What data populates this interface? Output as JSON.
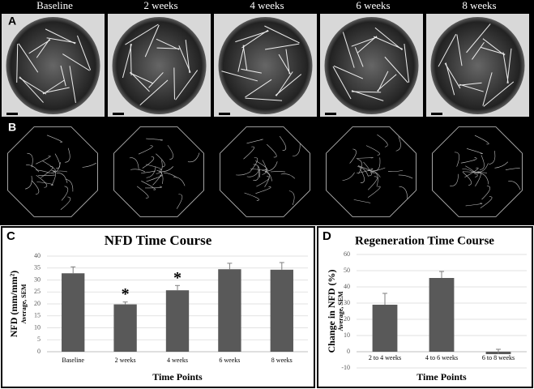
{
  "column_labels": [
    "Baseline",
    "2 weeks",
    "4 weeks",
    "6 weeks",
    "8 weeks"
  ],
  "panel_labels": [
    "A",
    "B",
    "C",
    "D"
  ],
  "chart_data": [
    {
      "type": "bar",
      "title": "NFD Time Course",
      "y_label": "NFD (mm/mm²)",
      "y_sublabel": "Average, SEM",
      "x_label": "Time Points",
      "categories": [
        "Baseline",
        "2 weeks",
        "4 weeks",
        "6 weeks",
        "8 weeks"
      ],
      "series": [
        {
          "color": "#595959",
          "values": [
            32.8,
            19.8,
            25.7,
            34.5,
            34.3
          ],
          "errors": [
            2.7,
            1,
            2,
            2.5,
            3
          ]
        }
      ],
      "ylim": [
        0,
        40
      ],
      "yticks": [
        0,
        5,
        10,
        15,
        20,
        25,
        30,
        35,
        40
      ],
      "grid": true,
      "annotations": [
        {
          "text": "*",
          "x": "2 weeks"
        },
        {
          "text": "*",
          "x": "4 weeks"
        }
      ]
    },
    {
      "type": "bar",
      "title": "Regeneration Time Course",
      "y_label": "Change in NFD (%)",
      "y_sublabel": "Average, SEM",
      "x_label": "Time Points",
      "categories": [
        "2 to 4 weeks",
        "4 to 6 weeks",
        "6 to 8 weeks"
      ],
      "series": [
        {
          "color": "#595959",
          "values": [
            29,
            45.5,
            -1.5
          ],
          "errors": [
            7,
            4,
            3
          ]
        }
      ],
      "ylim": [
        -10,
        60
      ],
      "yticks": [
        -10,
        0,
        10,
        20,
        30,
        40,
        50,
        60
      ],
      "grid": true
    }
  ]
}
